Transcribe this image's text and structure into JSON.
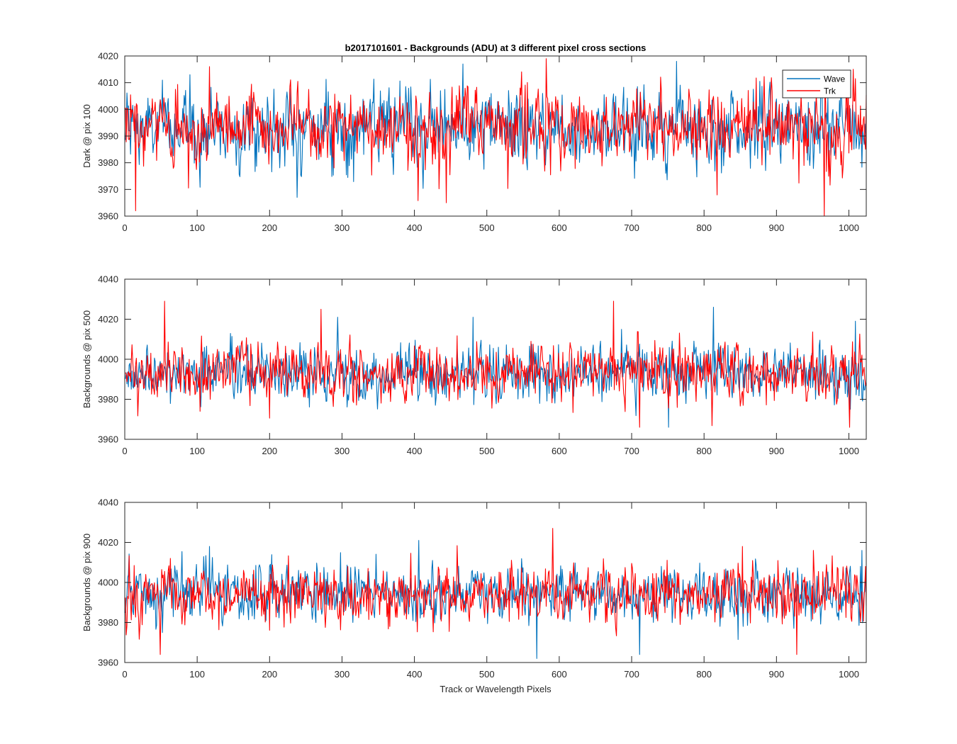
{
  "title": "b2017101601 - Backgrounds (ADU) at 3 different pixel cross sections",
  "colors": {
    "wave": "#0072BD",
    "trk": "#FF0000",
    "axis": "#262626"
  },
  "legend": [
    {
      "label": "Wave",
      "color": "#0072BD"
    },
    {
      "label": "Trk",
      "color": "#FF0000"
    }
  ],
  "chart_data": [
    {
      "type": "line",
      "title": "b2017101601 - Backgrounds (ADU) at 3 different pixel cross sections",
      "xlabel": "",
      "ylabel": "Dark @ pix 100",
      "xlim": [
        0,
        1024
      ],
      "ylim": [
        3960,
        4020
      ],
      "xticks": [
        0,
        100,
        200,
        300,
        400,
        500,
        600,
        700,
        800,
        900,
        1000
      ],
      "yticks": [
        3960,
        3970,
        3980,
        3990,
        4000,
        4010,
        4020
      ],
      "legend_location": "top-right",
      "series": [
        {
          "name": "Wave",
          "color": "#0072BD",
          "n_points": 1024,
          "mean": 3993,
          "std": 7,
          "peaks": [
            [
              89,
              4013
            ],
            [
              237,
              3967
            ],
            [
              466,
              4017
            ],
            [
              761,
              4018
            ],
            [
              820,
              3985
            ]
          ]
        },
        {
          "name": "Trk",
          "color": "#FF0000",
          "n_points": 1024,
          "mean": 3993,
          "std": 7,
          "peaks": [
            [
              14,
              3962
            ],
            [
              116,
              4016
            ],
            [
              443,
              3965
            ],
            [
              581,
              4019
            ],
            [
              965,
              3960
            ],
            [
              1005,
              4015
            ]
          ]
        }
      ]
    },
    {
      "type": "line",
      "xlabel": "",
      "ylabel": "Backgrounds @ pix 500",
      "xlim": [
        0,
        1024
      ],
      "ylim": [
        3960,
        4040
      ],
      "xticks": [
        0,
        100,
        200,
        300,
        400,
        500,
        600,
        700,
        800,
        900,
        1000
      ],
      "yticks": [
        3960,
        3980,
        4000,
        4020,
        4040
      ],
      "series": [
        {
          "name": "Wave",
          "color": "#0072BD",
          "n_points": 1024,
          "mean": 3993,
          "std": 7,
          "peaks": [
            [
              293,
              4021
            ],
            [
              480,
              4021
            ],
            [
              812,
              4026
            ],
            [
              1008,
              4019
            ],
            [
              750,
              3966
            ]
          ]
        },
        {
          "name": "Trk",
          "color": "#FF0000",
          "n_points": 1024,
          "mean": 3993,
          "std": 7,
          "peaks": [
            [
              54,
              4029
            ],
            [
              270,
              4025
            ],
            [
              674,
              4029
            ],
            [
              710,
              3966
            ],
            [
              1000,
              3966
            ]
          ]
        }
      ]
    },
    {
      "type": "line",
      "xlabel": "Track or Wavelength Pixels",
      "ylabel": "Backgrounds @ pix 900",
      "xlim": [
        0,
        1024
      ],
      "ylim": [
        3960,
        4040
      ],
      "xticks": [
        0,
        100,
        200,
        300,
        400,
        500,
        600,
        700,
        800,
        900,
        1000
      ],
      "yticks": [
        3960,
        3980,
        4000,
        4020,
        4040
      ],
      "series": [
        {
          "name": "Wave",
          "color": "#0072BD",
          "n_points": 1024,
          "mean": 3994,
          "std": 7,
          "peaks": [
            [
              116,
              4018
            ],
            [
              405,
              4021
            ],
            [
              568,
              3962
            ],
            [
              710,
              3964
            ],
            [
              1017,
              4016
            ]
          ]
        },
        {
          "name": "Trk",
          "color": "#FF0000",
          "n_points": 1024,
          "mean": 3994,
          "std": 7,
          "peaks": [
            [
              48,
              3964
            ],
            [
              590,
              4027
            ],
            [
              852,
              4018
            ],
            [
              927,
              3964
            ],
            [
              950,
              4016
            ]
          ]
        }
      ]
    }
  ]
}
